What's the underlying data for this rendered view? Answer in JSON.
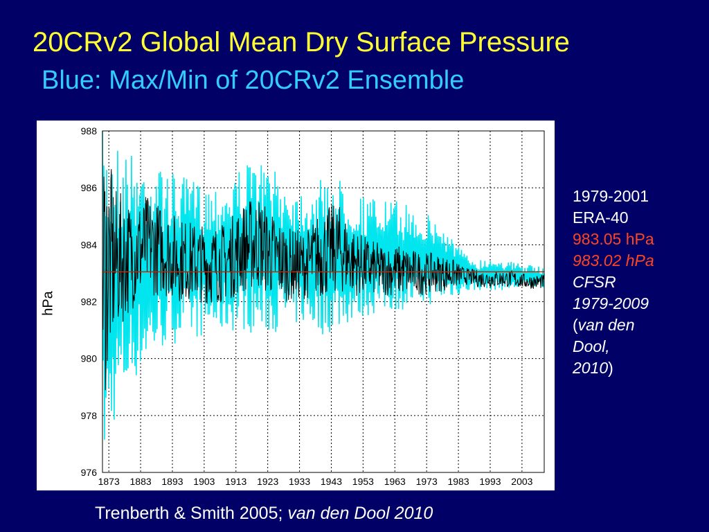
{
  "slide": {
    "title": "20CRv2 Global Mean Dry Surface Pressure",
    "subtitle": "Blue: Max/Min of 20CRv2 Ensemble",
    "footer_citation": "Trenberth & Smith 2005; ",
    "footer_citation_italic": "van den Dool 2010",
    "sidebar": {
      "era_period": "1979-2001",
      "era_name": "ERA-40",
      "era_value": "983.05 hPa",
      "cfsr_value": "983.02 hPa",
      "cfsr_name": "CFSR",
      "cfsr_period": "1979-2009",
      "cite_open": "(",
      "cite_text_1": "van den",
      "cite_text_2": "Dool,",
      "cite_text_3": "2010",
      "cite_close": ")"
    }
  },
  "colors": {
    "background": "#000066",
    "title": "#ffff33",
    "subtitle": "#33ccff",
    "ensemble_envelope": "#00e5ee",
    "mean_series": "#000000",
    "reference_line": "#cc2200",
    "highlight_text": "#ff4422"
  },
  "chart_data": {
    "type": "line",
    "xlabel": "",
    "ylabel": "hPa",
    "xlim": [
      1871,
      2010
    ],
    "ylim": [
      976,
      988
    ],
    "grid": true,
    "x_ticks": [
      1873,
      1883,
      1893,
      1903,
      1913,
      1923,
      1933,
      1943,
      1953,
      1963,
      1973,
      1983,
      1993,
      2003
    ],
    "x_tick_labels": [
      "1873",
      "1883",
      "1893",
      "1903",
      "1913",
      "1923",
      "1933",
      "1943",
      "1953",
      "1963",
      "1973",
      "1983",
      "1993",
      "2003"
    ],
    "y_ticks": [
      976,
      978,
      980,
      982,
      984,
      986,
      988
    ],
    "y_tick_labels": [
      "976",
      "978",
      "980",
      "982",
      "984",
      "986",
      "988"
    ],
    "reference_line": {
      "y": 983.05
    },
    "series": [
      {
        "role": "ensemble max/min envelope",
        "x": [
          1871,
          1875,
          1880,
          1885,
          1890,
          1895,
          1900,
          1905,
          1910,
          1915,
          1920,
          1925,
          1930,
          1935,
          1940,
          1945,
          1950,
          1955,
          1960,
          1965,
          1970,
          1975,
          1980,
          1985,
          1990,
          1995,
          2000,
          2005,
          2010
        ],
        "upper": [
          988.0,
          987.8,
          987.3,
          987.0,
          986.7,
          986.4,
          986.3,
          986.2,
          986.3,
          986.8,
          987.0,
          986.6,
          986.2,
          986.0,
          986.3,
          986.4,
          985.9,
          985.7,
          985.6,
          985.5,
          985.3,
          985.0,
          984.5,
          983.7,
          983.5,
          983.6,
          983.4,
          983.3,
          983.2
        ],
        "lower": [
          976.0,
          977.8,
          979.0,
          979.8,
          980.3,
          980.6,
          980.7,
          980.8,
          980.9,
          981.0,
          980.8,
          980.9,
          981.1,
          981.2,
          980.8,
          981.0,
          981.3,
          981.5,
          981.6,
          981.7,
          981.8,
          981.9,
          982.1,
          982.3,
          982.4,
          982.4,
          982.4,
          982.5,
          982.5
        ]
      },
      {
        "role": "ensemble mean",
        "x": [
          1871,
          1875,
          1880,
          1885,
          1890,
          1895,
          1900,
          1905,
          1910,
          1915,
          1920,
          1925,
          1930,
          1935,
          1940,
          1945,
          1950,
          1955,
          1960,
          1965,
          1970,
          1975,
          1980,
          1985,
          1990,
          1995,
          2000,
          2005,
          2010
        ],
        "y": [
          983.2,
          983.4,
          983.6,
          984.0,
          983.8,
          983.5,
          983.4,
          983.3,
          983.4,
          983.9,
          984.1,
          983.6,
          983.3,
          983.3,
          983.7,
          983.9,
          983.4,
          983.2,
          983.1,
          983.1,
          983.0,
          983.0,
          983.0,
          982.9,
          982.8,
          982.8,
          982.8,
          982.7,
          982.7
        ],
        "spread": [
          5.0,
          2.6,
          1.9,
          1.8,
          1.6,
          1.5,
          1.4,
          1.4,
          1.4,
          1.6,
          1.7,
          1.5,
          1.3,
          1.2,
          1.6,
          1.6,
          1.2,
          1.0,
          0.9,
          0.9,
          0.8,
          0.7,
          0.6,
          0.3,
          0.3,
          0.3,
          0.3,
          0.25,
          0.25
        ]
      }
    ]
  }
}
